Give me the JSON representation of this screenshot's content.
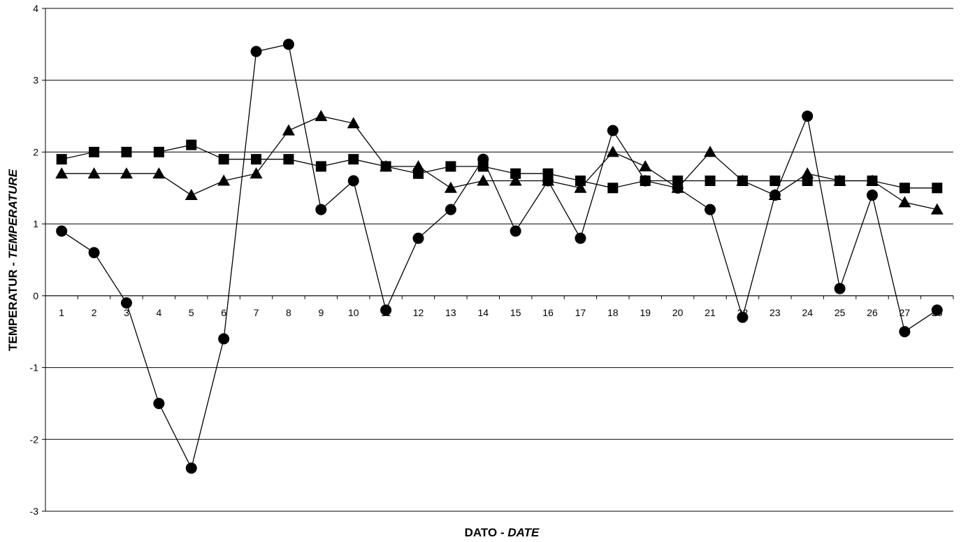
{
  "chart_data": {
    "type": "line",
    "xlabel": {
      "plain": "DATO - ",
      "italic": "DATE"
    },
    "ylabel": {
      "plain": "TEMPERATUR - ",
      "italic": "TEMPERATURE"
    },
    "ylim": [
      -3,
      4
    ],
    "yticks": [
      "-3",
      "-2",
      "-1",
      "0",
      "1",
      "2",
      "3",
      "4"
    ],
    "grid": true,
    "legend": "none",
    "x": [
      "1",
      "2",
      "3",
      "4",
      "5",
      "6",
      "7",
      "8",
      "9",
      "10",
      "11",
      "12",
      "13",
      "14",
      "15",
      "16",
      "17",
      "18",
      "19",
      "20",
      "21",
      "22",
      "23",
      "24",
      "25",
      "26",
      "27",
      "28"
    ],
    "series": [
      {
        "marker": "circle",
        "values": [
          0.9,
          0.6,
          -0.1,
          -1.5,
          -2.4,
          -0.6,
          3.4,
          3.5,
          1.2,
          1.6,
          -0.2,
          0.8,
          1.2,
          1.9,
          0.9,
          1.6,
          0.8,
          2.3,
          1.6,
          1.5,
          1.2,
          -0.3,
          1.4,
          2.5,
          0.1,
          1.4,
          -0.5,
          -0.2
        ]
      },
      {
        "marker": "square",
        "values": [
          1.9,
          2.0,
          2.0,
          2.0,
          2.1,
          1.9,
          1.9,
          1.9,
          1.8,
          1.9,
          1.8,
          1.7,
          1.8,
          1.8,
          1.7,
          1.7,
          1.6,
          1.5,
          1.6,
          1.6,
          1.6,
          1.6,
          1.6,
          1.6,
          1.6,
          1.6,
          1.5,
          1.5
        ]
      },
      {
        "marker": "triangle",
        "values": [
          1.7,
          1.7,
          1.7,
          1.7,
          1.4,
          1.6,
          1.7,
          2.3,
          2.5,
          2.4,
          1.8,
          1.8,
          1.5,
          1.6,
          1.6,
          1.6,
          1.5,
          2.0,
          1.8,
          1.5,
          2.0,
          1.6,
          1.4,
          1.7,
          1.6,
          1.6,
          1.3,
          1.2
        ]
      }
    ]
  }
}
